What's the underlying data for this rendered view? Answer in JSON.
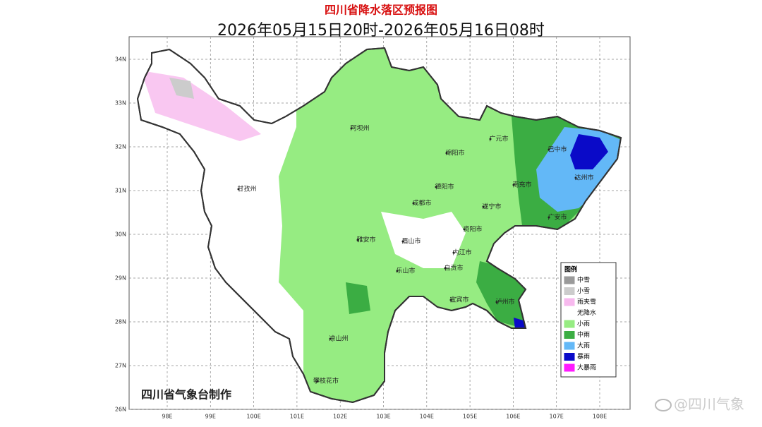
{
  "header": {
    "title": "四川省降水落区预报图",
    "subtitle": "2026年05月15日20时-2026年05月16日08时"
  },
  "map": {
    "lon_labels": [
      "98E",
      "99E",
      "100E",
      "101E",
      "102E",
      "103E",
      "104E",
      "105E",
      "106E",
      "107E",
      "108E"
    ],
    "lat_labels": [
      "34N",
      "33N",
      "32N",
      "31N",
      "30N",
      "29N",
      "28N",
      "27N",
      "26N"
    ],
    "places": [
      "阿坝州",
      "甘孜州",
      "广元市",
      "巴中市",
      "绵阳市",
      "达州市",
      "南充市",
      "德阳市",
      "成都市",
      "遂宁市",
      "广安市",
      "资阳市",
      "雅安市",
      "眉山市",
      "内江市",
      "乐山市",
      "自贡市",
      "宜宾市",
      "泸州市",
      "凉山州",
      "攀枝花市"
    ]
  },
  "legend": {
    "title": "图例",
    "items": [
      {
        "label": "中雪",
        "color": "#9a9a9a"
      },
      {
        "label": "小雪",
        "color": "#cccccc"
      },
      {
        "label": "雨夹雪",
        "color": "#f7b9ee"
      },
      {
        "label": "无降水",
        "color": "#ffffff"
      },
      {
        "label": "小雨",
        "color": "#96ec82"
      },
      {
        "label": "中雨",
        "color": "#3bad43"
      },
      {
        "label": "大雨",
        "color": "#63b8f7"
      },
      {
        "label": "暴雨",
        "color": "#0a0ac8"
      },
      {
        "label": "大暴雨",
        "color": "#ff1aff"
      }
    ]
  },
  "credit": "四川省气象台制作",
  "watermark": "@四川气象"
}
